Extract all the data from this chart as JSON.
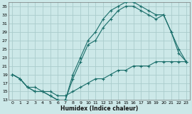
{
  "xlabel": "Humidex (Indice chaleur)",
  "background_color": "#cce8e8",
  "grid_color": "#aacccc",
  "line_color": "#1a6e6a",
  "xlim": [
    -0.5,
    23.5
  ],
  "ylim": [
    13,
    36
  ],
  "yticks": [
    13,
    15,
    17,
    19,
    21,
    23,
    25,
    27,
    29,
    31,
    33,
    35
  ],
  "xticks": [
    0,
    1,
    2,
    3,
    4,
    5,
    6,
    7,
    8,
    9,
    10,
    11,
    12,
    13,
    14,
    15,
    16,
    17,
    18,
    19,
    20,
    21,
    22,
    23
  ],
  "line1_x": [
    0,
    1,
    2,
    3,
    4,
    5,
    6,
    7,
    8,
    9,
    10,
    11,
    12,
    13,
    14,
    15,
    16,
    17,
    18,
    19,
    20,
    21,
    22,
    23
  ],
  "line1_y": [
    19,
    18,
    16,
    15,
    15,
    14,
    13,
    13,
    19,
    23,
    27,
    29,
    32,
    34,
    35,
    36,
    36,
    35,
    34,
    33,
    33,
    29,
    25,
    22
  ],
  "line2_x": [
    0,
    1,
    2,
    3,
    4,
    5,
    6,
    7,
    8,
    9,
    10,
    11,
    12,
    13,
    14,
    15,
    16,
    17,
    18,
    19,
    20,
    21,
    22,
    23
  ],
  "line2_y": [
    19,
    18,
    16,
    15,
    15,
    14,
    13,
    13,
    18,
    22,
    26,
    27,
    30,
    32,
    34,
    35,
    35,
    34,
    33,
    32,
    33,
    29,
    24,
    22
  ],
  "line3_x": [
    0,
    1,
    2,
    3,
    4,
    5,
    6,
    7,
    8,
    9,
    10,
    11,
    12,
    13,
    14,
    15,
    16,
    17,
    18,
    19,
    20,
    21,
    22,
    23
  ],
  "line3_y": [
    19,
    18,
    16,
    16,
    15,
    15,
    14,
    14,
    15,
    16,
    17,
    18,
    18,
    19,
    20,
    20,
    21,
    21,
    21,
    22,
    22,
    22,
    22,
    22
  ]
}
